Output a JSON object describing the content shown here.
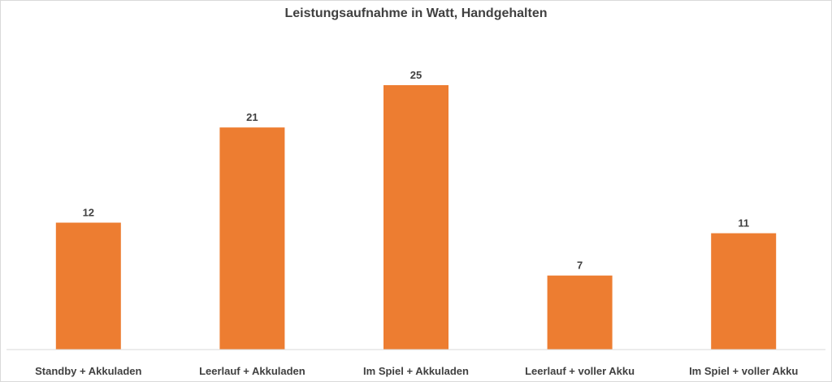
{
  "chart_data": {
    "type": "bar",
    "title": "Leistungsaufnahme in Watt, Handgehalten",
    "categories": [
      "Standby + Akkuladen",
      "Leerlauf + Akkuladen",
      "Im Spiel + Akkuladen",
      "Leerlauf + voller Akku",
      "Im Spiel + voller Akku"
    ],
    "values": [
      12,
      21,
      25,
      7,
      11
    ],
    "data_labels": [
      "12",
      "21",
      "25",
      "7",
      "11"
    ],
    "ylim": [
      0,
      25
    ],
    "grid": false,
    "legend": "none",
    "bar_color": "#ED7D31"
  }
}
